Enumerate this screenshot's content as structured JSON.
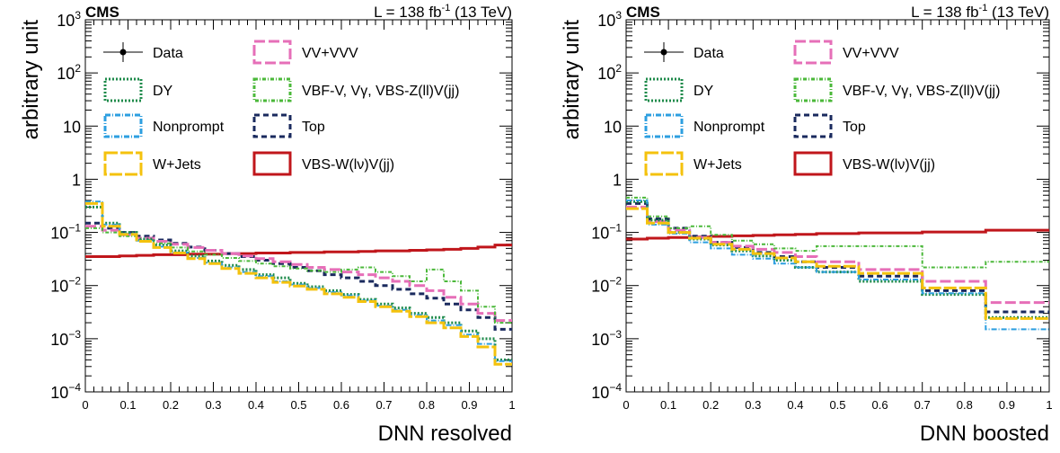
{
  "chart_data": [
    {
      "type": "step",
      "experiment": "CMS",
      "lumi_label": "L = 138 fb",
      "lumi_sup": "-1",
      "lumi_suffix": " (13 TeV)",
      "xlabel": "DNN resolved",
      "ylabel": "arbitrary unit",
      "xlim": [
        0,
        1
      ],
      "ylim": [
        0.0001,
        1000
      ],
      "yscale": "log",
      "x_ticks": [
        "0",
        "0.1",
        "0.2",
        "0.3",
        "0.4",
        "0.5",
        "0.6",
        "0.7",
        "0.8",
        "0.9",
        "1"
      ],
      "bin_edges": [
        0,
        0.04,
        0.08,
        0.12,
        0.16,
        0.2,
        0.24,
        0.28,
        0.32,
        0.36,
        0.4,
        0.44,
        0.48,
        0.52,
        0.56,
        0.6,
        0.64,
        0.68,
        0.72,
        0.76,
        0.8,
        0.84,
        0.88,
        0.92,
        0.96,
        1.0
      ],
      "series": [
        {
          "name": "VBS-W(lν)V(jj)",
          "color": "#c0161b",
          "dash": "",
          "width": 3,
          "values": [
            0.035,
            0.035,
            0.036,
            0.037,
            0.038,
            0.038,
            0.039,
            0.039,
            0.04,
            0.04,
            0.041,
            0.041,
            0.042,
            0.042,
            0.043,
            0.043,
            0.044,
            0.045,
            0.045,
            0.046,
            0.047,
            0.048,
            0.05,
            0.053,
            0.058
          ]
        },
        {
          "name": "Top",
          "color": "#1a2a5e",
          "dash": "6,4",
          "width": 3,
          "values": [
            0.15,
            0.12,
            0.1,
            0.085,
            0.072,
            0.062,
            0.053,
            0.046,
            0.04,
            0.035,
            0.03,
            0.026,
            0.022,
            0.019,
            0.016,
            0.014,
            0.012,
            0.01,
            0.0085,
            0.007,
            0.0058,
            0.0045,
            0.0035,
            0.0025,
            0.0015
          ]
        },
        {
          "name": "VV+VVV",
          "color": "#e66fb8",
          "dash": "12,4",
          "width": 3,
          "values": [
            0.13,
            0.11,
            0.09,
            0.078,
            0.068,
            0.06,
            0.052,
            0.046,
            0.04,
            0.036,
            0.032,
            0.028,
            0.025,
            0.022,
            0.02,
            0.018,
            0.016,
            0.014,
            0.012,
            0.01,
            0.008,
            0.006,
            0.0045,
            0.003,
            0.0022
          ]
        },
        {
          "name": "VBF-V, Vγ, VBS-Z(ll)V(jj)",
          "color": "#4bb83a",
          "dash": "4,2,1,2",
          "width": 2,
          "values": [
            0.12,
            0.1,
            0.085,
            0.072,
            0.062,
            0.052,
            0.044,
            0.038,
            0.033,
            0.029,
            0.026,
            0.023,
            0.021,
            0.019,
            0.018,
            0.02,
            0.022,
            0.018,
            0.015,
            0.012,
            0.02,
            0.012,
            0.008,
            0.004,
            0.002
          ]
        },
        {
          "name": "DY",
          "color": "#1d8a4a",
          "dash": "2,2",
          "width": 3,
          "values": [
            0.3,
            0.15,
            0.1,
            0.075,
            0.058,
            0.045,
            0.036,
            0.029,
            0.024,
            0.02,
            0.016,
            0.014,
            0.011,
            0.0095,
            0.008,
            0.0068,
            0.0055,
            0.0045,
            0.0038,
            0.003,
            0.0025,
            0.002,
            0.0014,
            0.001,
            0.0004
          ]
        },
        {
          "name": "Nonprompt",
          "color": "#2d9fe0",
          "dash": "6,2,1,2",
          "width": 2,
          "values": [
            0.38,
            0.14,
            0.095,
            0.07,
            0.054,
            0.042,
            0.033,
            0.027,
            0.022,
            0.018,
            0.015,
            0.012,
            0.0105,
            0.009,
            0.0075,
            0.0065,
            0.0052,
            0.0042,
            0.0035,
            0.0028,
            0.0022,
            0.0018,
            0.0012,
            0.0008,
            0.00038
          ]
        },
        {
          "name": "W+Jets",
          "color": "#f4c20d",
          "dash": "14,3",
          "width": 3,
          "values": [
            0.35,
            0.13,
            0.092,
            0.068,
            0.052,
            0.041,
            0.032,
            0.026,
            0.021,
            0.017,
            0.014,
            0.0115,
            0.0098,
            0.0085,
            0.007,
            0.006,
            0.005,
            0.004,
            0.0033,
            0.0026,
            0.002,
            0.0016,
            0.0011,
            0.0007,
            0.00033
          ]
        }
      ]
    },
    {
      "type": "step",
      "experiment": "CMS",
      "lumi_label": "L = 138 fb",
      "lumi_sup": "-1",
      "lumi_suffix": " (13 TeV)",
      "xlabel": "DNN boosted",
      "ylabel": "arbitrary unit",
      "xlim": [
        0,
        1
      ],
      "ylim": [
        0.0001,
        1000
      ],
      "yscale": "log",
      "x_ticks": [
        "0",
        "0.1",
        "0.2",
        "0.3",
        "0.4",
        "0.5",
        "0.6",
        "0.7",
        "0.8",
        "0.9",
        "1"
      ],
      "bin_edges": [
        0,
        0.05,
        0.1,
        0.15,
        0.2,
        0.25,
        0.3,
        0.35,
        0.4,
        0.45,
        0.55,
        0.7,
        0.85,
        1.0
      ],
      "series": [
        {
          "name": "VBS-W(lν)V(jj)",
          "color": "#c0161b",
          "dash": "",
          "width": 3,
          "values": [
            0.075,
            0.078,
            0.08,
            0.082,
            0.084,
            0.086,
            0.088,
            0.09,
            0.092,
            0.095,
            0.098,
            0.102,
            0.11
          ]
        },
        {
          "name": "Top",
          "color": "#1a2a5e",
          "dash": "6,4",
          "width": 3,
          "values": [
            0.35,
            0.18,
            0.12,
            0.085,
            0.065,
            0.052,
            0.042,
            0.035,
            0.028,
            0.022,
            0.015,
            0.008,
            0.0032
          ]
        },
        {
          "name": "VV+VVV",
          "color": "#e66fb8",
          "dash": "12,4",
          "width": 3,
          "values": [
            0.3,
            0.16,
            0.11,
            0.08,
            0.065,
            0.055,
            0.048,
            0.042,
            0.035,
            0.028,
            0.02,
            0.012,
            0.0048
          ]
        },
        {
          "name": "VBF-V, Vγ, VBS-Z(ll)V(jj)",
          "color": "#4bb83a",
          "dash": "4,2,1,2",
          "width": 2,
          "values": [
            0.45,
            0.2,
            0.12,
            0.13,
            0.09,
            0.07,
            0.06,
            0.05,
            0.045,
            0.055,
            0.055,
            0.022,
            0.028
          ]
        },
        {
          "name": "DY",
          "color": "#1d8a4a",
          "dash": "2,2",
          "width": 3,
          "values": [
            0.38,
            0.17,
            0.1,
            0.075,
            0.058,
            0.045,
            0.036,
            0.03,
            0.022,
            0.018,
            0.012,
            0.0068,
            0.0025
          ]
        },
        {
          "name": "Nonprompt",
          "color": "#2d9fe0",
          "dash": "6,2,1,2",
          "width": 2,
          "values": [
            0.4,
            0.14,
            0.095,
            0.065,
            0.05,
            0.038,
            0.032,
            0.026,
            0.022,
            0.018,
            0.013,
            0.0072,
            0.0015
          ]
        },
        {
          "name": "W+Jets",
          "color": "#f4c20d",
          "dash": "14,3",
          "width": 3,
          "values": [
            0.28,
            0.15,
            0.1,
            0.078,
            0.06,
            0.048,
            0.04,
            0.033,
            0.028,
            0.023,
            0.017,
            0.009,
            0.0024
          ]
        }
      ]
    }
  ],
  "legend": [
    {
      "label": "Data",
      "key": "data",
      "color": "#000000"
    },
    {
      "label": "VV+VVV",
      "color": "#e66fb8",
      "dash": "12,4"
    },
    {
      "label": "DY",
      "color": "#1d8a4a",
      "dash": "2,2"
    },
    {
      "label": "VBF-V, Vγ, VBS-Z(ll)V(jj)",
      "color": "#4bb83a",
      "dash": "4,2,1,2"
    },
    {
      "label": "Nonprompt",
      "color": "#2d9fe0",
      "dash": "6,2,1,2"
    },
    {
      "label": "Top",
      "color": "#1a2a5e",
      "dash": "6,4"
    },
    {
      "label": "W+Jets",
      "color": "#f4c20d",
      "dash": "14,3"
    },
    {
      "label": "VBS-W(lν)V(jj)",
      "color": "#c0161b",
      "dash": ""
    }
  ]
}
